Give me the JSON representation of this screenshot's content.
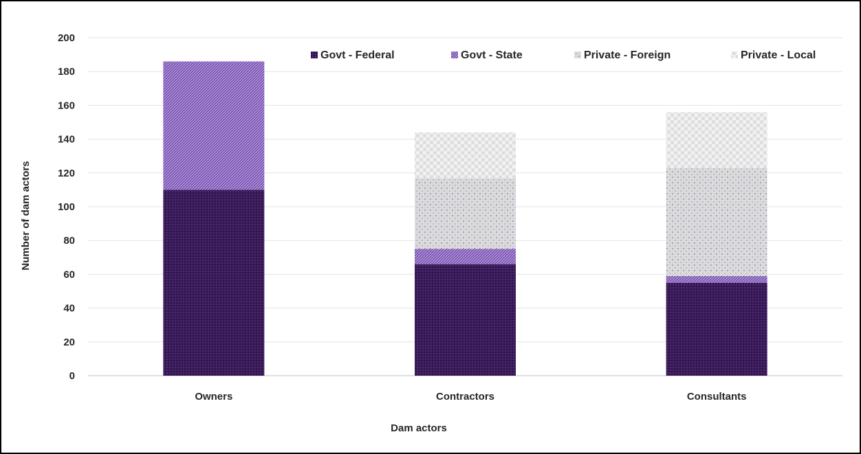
{
  "chart_data": {
    "type": "bar",
    "stacked": true,
    "title": "",
    "xlabel": "Dam actors",
    "ylabel": "Number of dam actors",
    "ylim": [
      0,
      200
    ],
    "yticks": [
      0,
      20,
      40,
      60,
      80,
      100,
      120,
      140,
      160,
      180,
      200
    ],
    "grid": "horizontal",
    "legend_position": "top-right",
    "categories": [
      "Owners",
      "Contractors",
      "Consultants"
    ],
    "series": [
      {
        "name": "Govt - Federal",
        "values": [
          110,
          66,
          55
        ],
        "color": "#3b1c5a",
        "pattern": "dense-crosshatch"
      },
      {
        "name": "Govt - State",
        "values": [
          76,
          9,
          4
        ],
        "color": "#8a63c2",
        "pattern": "diagonal-lines"
      },
      {
        "name": "Private - Foreign",
        "values": [
          0,
          42,
          64
        ],
        "color": "#d9d9d9",
        "pattern": "dotted"
      },
      {
        "name": "Private - Local",
        "values": [
          0,
          27,
          33
        ],
        "color": "#ececec",
        "pattern": "light-checker"
      }
    ]
  }
}
